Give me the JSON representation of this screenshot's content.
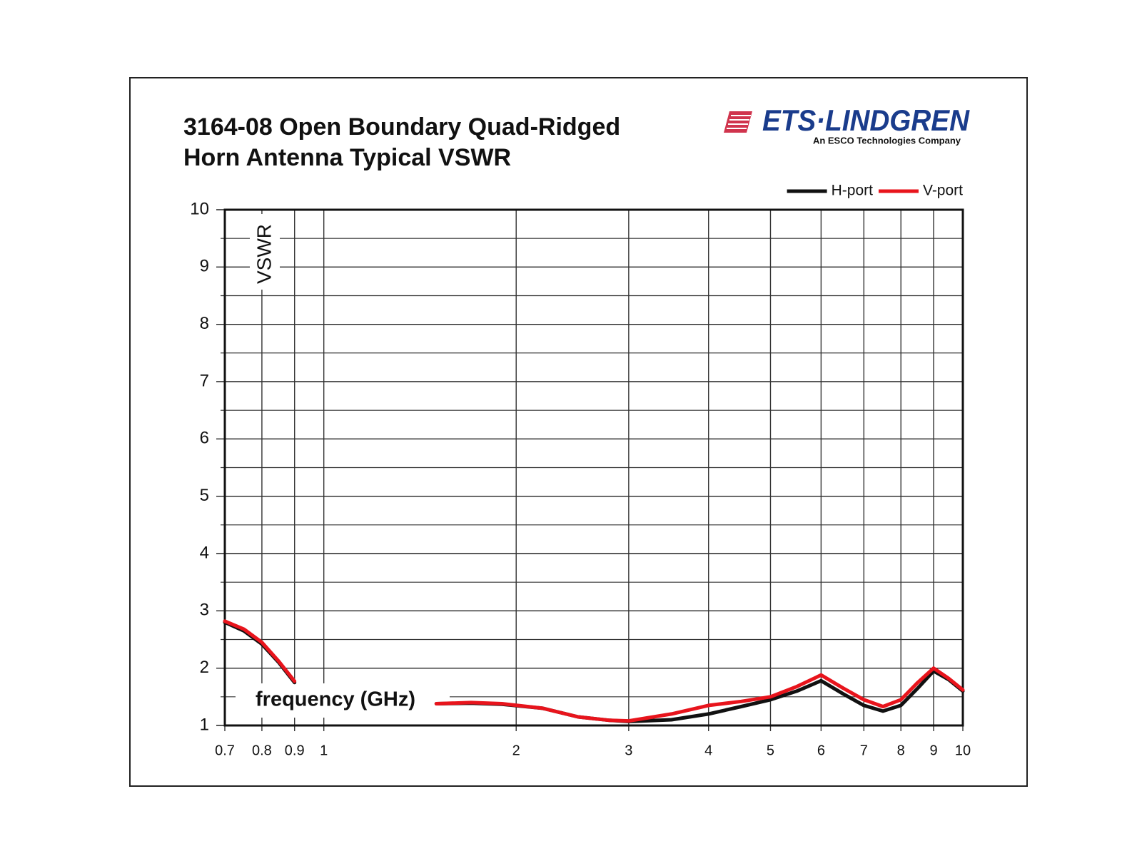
{
  "chart_data": {
    "type": "line",
    "title": [
      "3164-08 Open Boundary Quad-Ridged",
      "Horn Antenna Typical VSWR"
    ],
    "logo": {
      "brand": "ETS·LINDGREN",
      "tagline": "An ESCO Technologies Company"
    },
    "xlabel": "frequency (GHz)",
    "ylabel": "VSWR",
    "xscale": "log",
    "x": [
      0.7,
      0.75,
      0.8,
      0.85,
      0.9,
      1.2,
      1.5,
      1.7,
      1.9,
      2.2,
      2.5,
      2.8,
      3,
      3.5,
      4,
      4.5,
      5,
      5.5,
      6,
      6.5,
      7,
      7.5,
      8,
      8.5,
      9,
      9.5,
      10
    ],
    "series": [
      {
        "name": "H-port",
        "color": "#111111",
        "values": [
          2.8,
          2.65,
          2.42,
          2.1,
          1.75,
          null,
          1.38,
          1.39,
          1.37,
          1.3,
          1.15,
          1.09,
          1.07,
          1.1,
          1.2,
          1.33,
          1.45,
          1.6,
          1.78,
          1.55,
          1.35,
          1.25,
          1.35,
          1.65,
          1.95,
          1.8,
          1.6
        ]
      },
      {
        "name": "V-port",
        "color": "#e8141c",
        "values": [
          2.82,
          2.68,
          2.45,
          2.12,
          1.77,
          null,
          1.38,
          1.4,
          1.38,
          1.3,
          1.15,
          1.09,
          1.08,
          1.2,
          1.35,
          1.42,
          1.5,
          1.68,
          1.88,
          1.65,
          1.45,
          1.33,
          1.45,
          1.75,
          2.0,
          1.82,
          1.62
        ]
      }
    ],
    "xlim": [
      0.7,
      10
    ],
    "ylim": [
      1,
      10
    ],
    "xticks": [
      0.7,
      0.8,
      0.9,
      1,
      2,
      3,
      4,
      5,
      6,
      7,
      8,
      9,
      10
    ],
    "yticks": [
      1,
      2,
      3,
      4,
      5,
      6,
      7,
      8,
      9,
      10
    ],
    "yminor": [
      1.5,
      2.5,
      3.5,
      4.5,
      5.5,
      6.5,
      7.5,
      8.5,
      9.5
    ],
    "grid": true,
    "legend": "top-right"
  }
}
